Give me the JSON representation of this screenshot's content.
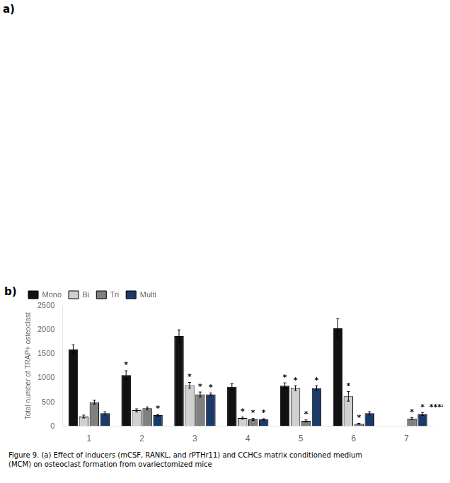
{
  "chart_data": {
    "type": "bar",
    "categories": [
      "1",
      "2",
      "3",
      "4",
      "5",
      "6",
      "7"
    ],
    "series": [
      {
        "name": "Mono",
        "color": "#111111",
        "values": [
          1600,
          1060,
          1870,
          820,
          840,
          2030,
          0
        ],
        "errors": [
          90,
          90,
          130,
          60,
          60,
          200,
          0
        ]
      },
      {
        "name": "Bi",
        "color": "#d0d0d0",
        "values": [
          200,
          330,
          850,
          170,
          790,
          620,
          0
        ],
        "errors": [
          30,
          30,
          60,
          20,
          50,
          100,
          0
        ]
      },
      {
        "name": "Tri",
        "color": "#808080",
        "values": [
          500,
          370,
          660,
          140,
          110,
          50,
          160
        ],
        "errors": [
          40,
          30,
          50,
          20,
          20,
          10,
          20
        ]
      },
      {
        "name": "Multi",
        "color": "#1a3a6a",
        "values": [
          270,
          230,
          660,
          140,
          790,
          270,
          255
        ],
        "errors": [
          30,
          20,
          30,
          15,
          50,
          30,
          30
        ]
      }
    ],
    "ylabel": "Total number of TRAP+ osteoclast",
    "ylim": [
      0,
      2500
    ],
    "yticks": [
      0,
      500,
      1000,
      1500,
      2000,
      2500
    ],
    "grid": false,
    "legend": "upper left",
    "annotations": [
      {
        "text": "*",
        "category": "2",
        "series": "Mono"
      },
      {
        "text": "*",
        "category": "2",
        "series": "Multi"
      },
      {
        "text": "*",
        "category": "3",
        "series": "Bi"
      },
      {
        "text": "*",
        "category": "3",
        "series": "Tri"
      },
      {
        "text": "*",
        "category": "3",
        "series": "Multi"
      },
      {
        "text": "*",
        "category": "4",
        "series": "Bi"
      },
      {
        "text": "*",
        "category": "4",
        "series": "Tri"
      },
      {
        "text": "*",
        "category": "4",
        "series": "Multi"
      },
      {
        "text": "*",
        "category": "5",
        "series": "Mono"
      },
      {
        "text": "*",
        "category": "5",
        "series": "Bi"
      },
      {
        "text": "*",
        "category": "5",
        "series": "Tri"
      },
      {
        "text": "*",
        "category": "5",
        "series": "Multi"
      },
      {
        "text": "*",
        "category": "6",
        "series": "Bi"
      },
      {
        "text": "*",
        "category": "6",
        "series": "Tri"
      },
      {
        "text": "*",
        "category": "7",
        "series": "Tri"
      },
      {
        "text": "*",
        "category": "7",
        "series": "Multi"
      },
      {
        "text": "****",
        "category": "7"
      }
    ],
    "panel_labels": [
      "a)",
      "b)"
    ],
    "caption": "Figure 9. (a) Effect of inducers (mCSF, RANKL, and rPTHr11) and CCHCs matrix conditioned medium\n(MCM) on osteoclast formation from ovariectomized mice"
  }
}
